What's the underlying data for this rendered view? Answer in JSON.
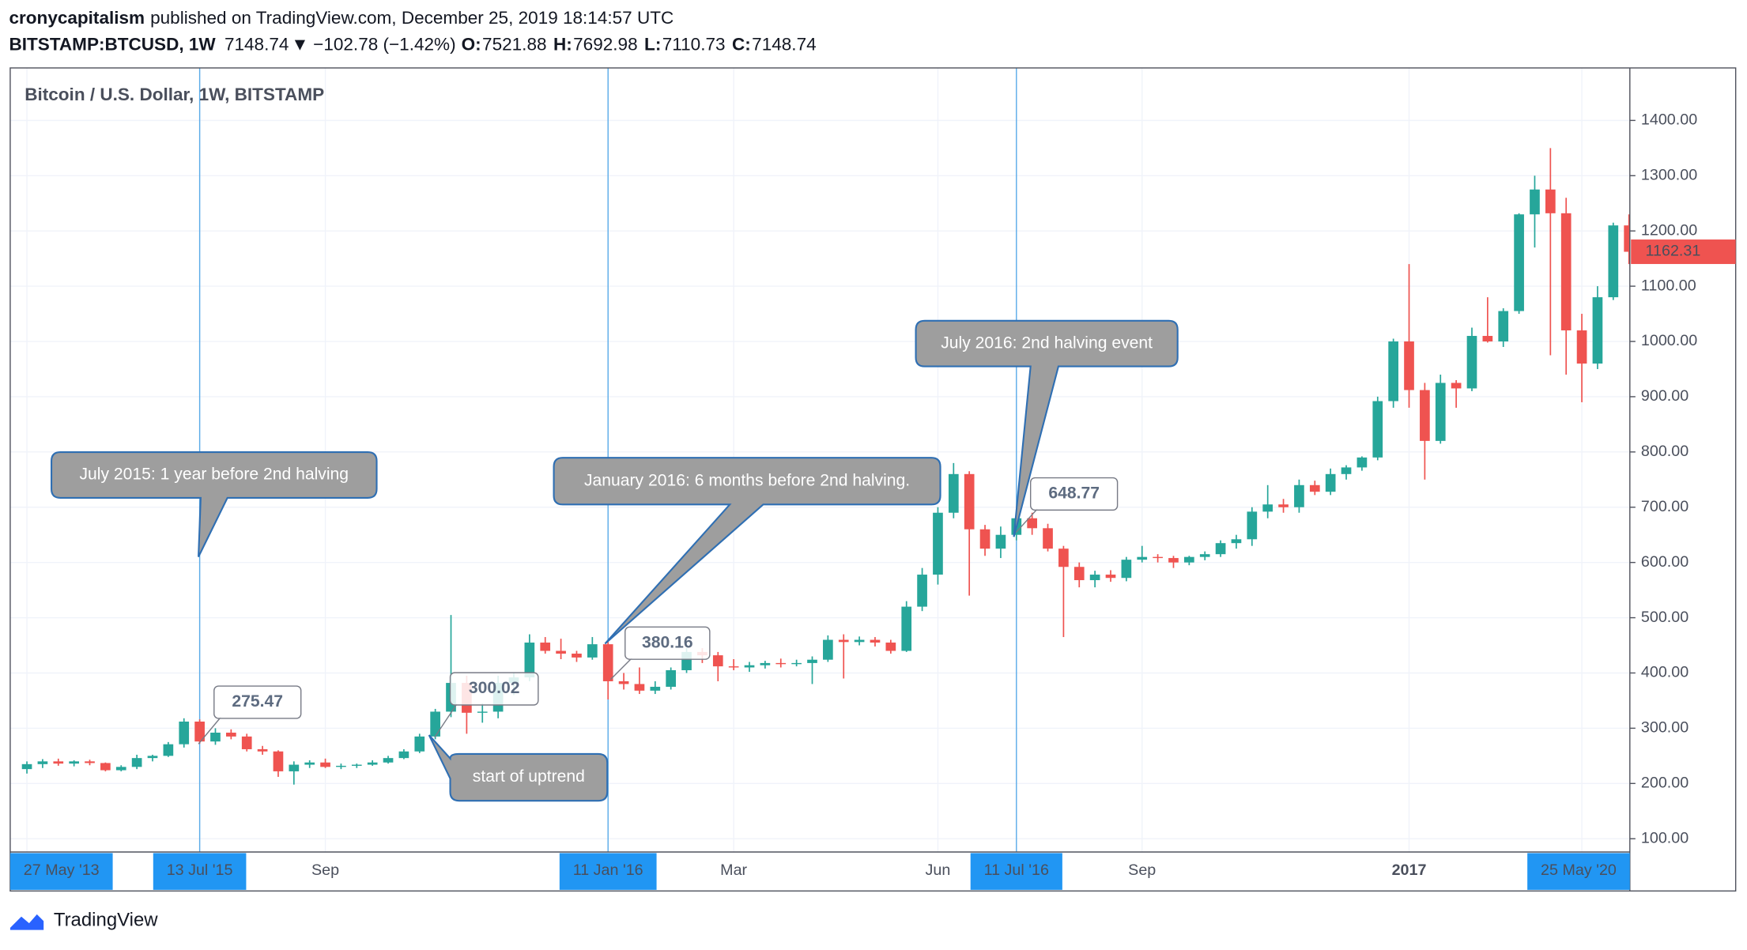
{
  "header": {
    "publisher": "cronycapitalism",
    "published": "published on TradingView.com, December 25, 2019 18:14:57 UTC",
    "symbol": "BITSTAMP:BTCUSD, 1W",
    "last": "7148.74",
    "arrow": "▼",
    "change": "−102.78 (−1.42%)",
    "ohlc": [
      {
        "label": "O:",
        "value": "7521.88"
      },
      {
        "label": "H:",
        "value": "7692.98"
      },
      {
        "label": "L:",
        "value": "7110.73"
      },
      {
        "label": "C:",
        "value": "7148.74"
      }
    ]
  },
  "chart_data": {
    "type": "candlestick",
    "title": "Bitcoin / U.S. Dollar, 1W, BITSTAMP",
    "up_color": "#26a69a",
    "down_color": "#ef5350",
    "categories": [
      "27 May '13",
      null,
      null,
      null,
      null,
      null,
      null,
      null,
      null,
      null,
      null,
      "13 Jul '15",
      null,
      null,
      null,
      null,
      null,
      null,
      null,
      "Sep",
      null,
      null,
      null,
      null,
      null,
      null,
      null,
      null,
      null,
      null,
      null,
      null,
      null,
      null,
      null,
      null,
      null,
      "11 Jan '16",
      null,
      null,
      null,
      null,
      null,
      null,
      null,
      "Mar",
      null,
      null,
      null,
      null,
      null,
      null,
      null,
      null,
      null,
      null,
      null,
      null,
      "Jun",
      null,
      null,
      null,
      null,
      "11 Jul '16",
      null,
      null,
      null,
      null,
      null,
      null,
      null,
      "Sep",
      null,
      null,
      null,
      null,
      null,
      null,
      null,
      null,
      null,
      null,
      null,
      null,
      null,
      null,
      null,
      null,
      "2017",
      null,
      null,
      null,
      null,
      null,
      null,
      null,
      null,
      null,
      null,
      "25 May '20",
      null,
      null,
      null
    ],
    "open": [
      226,
      235,
      240,
      236,
      240,
      237,
      224,
      230,
      246,
      250,
      271,
      312,
      276,
      292,
      285,
      262,
      258,
      222,
      234,
      238,
      230,
      232,
      234,
      238,
      246,
      258,
      285,
      330,
      382,
      328,
      330,
      382,
      392,
      455,
      440,
      435,
      428,
      452,
      385,
      380,
      368,
      375,
      405,
      438,
      432,
      412,
      410,
      414,
      418,
      416,
      418,
      424,
      460,
      456,
      460,
      455,
      440,
      520,
      578,
      690,
      760,
      660,
      625,
      650,
      680,
      662,
      625,
      592,
      568,
      578,
      572,
      605,
      610,
      608,
      600,
      610,
      615,
      635,
      642,
      692,
      705,
      700,
      740,
      728,
      760,
      772,
      790,
      892,
      1000,
      912,
      820,
      925,
      915,
      1010,
      1000,
      1055,
      1230,
      1275,
      1232,
      1020,
      960,
      1080,
      1210
    ],
    "high": [
      240,
      244,
      245,
      242,
      243,
      238,
      233,
      252,
      252,
      275,
      318,
      316,
      300,
      298,
      290,
      268,
      260,
      240,
      242,
      245,
      236,
      236,
      242,
      250,
      262,
      290,
      335,
      505,
      395,
      345,
      395,
      400,
      470,
      465,
      462,
      440,
      465,
      456,
      400,
      410,
      385,
      410,
      445,
      445,
      438,
      425,
      420,
      422,
      426,
      424,
      430,
      468,
      470,
      466,
      465,
      460,
      530,
      590,
      700,
      780,
      765,
      668,
      665,
      690,
      690,
      670,
      630,
      600,
      585,
      586,
      610,
      630,
      615,
      612,
      612,
      620,
      640,
      650,
      700,
      740,
      715,
      750,
      748,
      770,
      776,
      792,
      900,
      1005,
      1140,
      925,
      940,
      930,
      1025,
      1080,
      1060,
      1232,
      1300,
      1350,
      1260,
      1050,
      1100,
      1215,
      1230
    ],
    "low": [
      218,
      228,
      232,
      231,
      233,
      222,
      222,
      226,
      240,
      248,
      265,
      272,
      270,
      280,
      258,
      252,
      212,
      198,
      228,
      228,
      226,
      228,
      232,
      236,
      244,
      255,
      280,
      320,
      290,
      310,
      318,
      360,
      385,
      435,
      425,
      420,
      424,
      352,
      370,
      362,
      362,
      370,
      400,
      418,
      385,
      405,
      402,
      408,
      410,
      412,
      380,
      420,
      390,
      450,
      448,
      435,
      438,
      512,
      560,
      680,
      540,
      612,
      608,
      640,
      650,
      620,
      465,
      555,
      555,
      565,
      566,
      600,
      600,
      590,
      595,
      604,
      610,
      625,
      630,
      680,
      690,
      690,
      722,
      722,
      750,
      766,
      785,
      880,
      880,
      750,
      815,
      880,
      910,
      998,
      990,
      1050,
      1170,
      975,
      940,
      890,
      950,
      1075,
      1140
    ],
    "close": [
      235,
      240,
      236,
      240,
      237,
      224,
      230,
      246,
      250,
      271,
      312,
      276,
      292,
      285,
      262,
      258,
      222,
      234,
      238,
      230,
      232,
      234,
      238,
      246,
      258,
      285,
      330,
      382,
      328,
      330,
      382,
      392,
      455,
      440,
      435,
      428,
      452,
      385,
      380,
      368,
      375,
      405,
      438,
      432,
      412,
      410,
      414,
      418,
      416,
      418,
      424,
      460,
      456,
      460,
      455,
      440,
      520,
      578,
      690,
      760,
      660,
      625,
      650,
      680,
      662,
      625,
      592,
      568,
      578,
      572,
      605,
      610,
      608,
      600,
      610,
      615,
      635,
      642,
      692,
      705,
      700,
      740,
      728,
      760,
      772,
      790,
      892,
      1000,
      912,
      820,
      925,
      915,
      1010,
      1000,
      1055,
      1230,
      1275,
      1232,
      1020,
      960,
      1080,
      1210,
      1162.31
    ],
    "ylim": [
      76,
      1495
    ],
    "yticks": [
      {
        "value": 100,
        "label": "100.00"
      },
      {
        "value": 200,
        "label": "200.00"
      },
      {
        "value": 300,
        "label": "300.00"
      },
      {
        "value": 400,
        "label": "400.00"
      },
      {
        "value": 500,
        "label": "500.00"
      },
      {
        "value": 600,
        "label": "600.00"
      },
      {
        "value": 700,
        "label": "700.00"
      },
      {
        "value": 800,
        "label": "800.00"
      },
      {
        "value": 900,
        "label": "900.00"
      },
      {
        "value": 1000,
        "label": "1000.00"
      },
      {
        "value": 1100,
        "label": "1100.00"
      },
      {
        "value": 1200,
        "label": "1200.00"
      },
      {
        "value": 1300,
        "label": "1300.00"
      },
      {
        "value": 1400,
        "label": "1400.00"
      }
    ],
    "grid": true,
    "price_labels": [
      275.47,
      300.02,
      380.16,
      648.77
    ],
    "annotations": [
      "July 2015: 1 year before 2nd halving",
      "January 2016: 6 months before 2nd halving.",
      "July 2016: 2nd halving event",
      "start of uptrend"
    ]
  },
  "footer": {
    "brand": "TradingView"
  }
}
